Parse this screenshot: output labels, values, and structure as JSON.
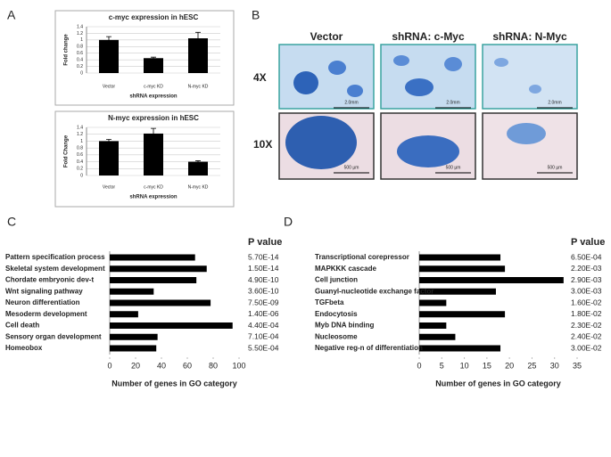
{
  "panel_labels": [
    "A",
    "B",
    "C",
    "D"
  ],
  "image_panel": {
    "columns": [
      "Vector",
      "shRNA: c-Myc",
      "shRNA: N-Myc"
    ],
    "rows": [
      "4X",
      "10X"
    ],
    "scale_bars": [
      [
        "2.0mm",
        "2.0mm",
        "2.0mm"
      ],
      [
        "500 µm",
        "500 µm",
        "500 µm"
      ]
    ]
  },
  "chart_data": [
    {
      "type": "bar",
      "title": "c-myc expression in hESC",
      "y_label": "Fold change",
      "x_label": "shRNA expression",
      "categories": [
        "Vector",
        "c-myc KD",
        "N-myc KD"
      ],
      "values": [
        1.0,
        0.45,
        1.05
      ],
      "errors": [
        0.1,
        0.03,
        0.18
      ],
      "color": "#000000",
      "ylim": [
        0,
        1.4
      ],
      "yticks": [
        0,
        0.2,
        0.4,
        0.6,
        0.8,
        1,
        1.2,
        1.4
      ],
      "grid": true
    },
    {
      "type": "bar",
      "title": "N-myc expression in hESC",
      "y_label": "Fold Change",
      "x_label": "shRNA expression",
      "categories": [
        "Vector",
        "c-myc KD",
        "N-myc KD"
      ],
      "values": [
        1.0,
        1.22,
        0.4
      ],
      "errors": [
        0.05,
        0.15,
        0.03
      ],
      "color": "#000000",
      "ylim": [
        0,
        1.4
      ],
      "yticks": [
        0,
        0.2,
        0.4,
        0.6,
        0.8,
        1,
        1.2,
        1.4
      ],
      "grid": true
    },
    {
      "type": "hbar",
      "x_label": "Number of genes in GO category",
      "p_value_header": "P value",
      "categories": [
        "Pattern specification process",
        "Skeletal system development",
        "Chordate embryonic dev-t",
        "Wnt signaling pathway",
        "Neuron differentiation",
        "Mesoderm development",
        "Cell death",
        "Sensory organ development",
        "Homeobox"
      ],
      "values": [
        66,
        75,
        67,
        34,
        78,
        22,
        95,
        37,
        36
      ],
      "p_values": [
        "5.70E-14",
        "1.50E-14",
        "4.90E-10",
        "3.60E-10",
        "7.50E-09",
        "1.40E-06",
        "4.40E-04",
        "7.10E-04",
        "5.50E-04"
      ],
      "color": "#000000",
      "xlim": [
        0,
        100
      ],
      "xticks": [
        0,
        20,
        40,
        60,
        80,
        100
      ]
    },
    {
      "type": "hbar",
      "x_label": "Number of genes in GO category",
      "p_value_header": "P value",
      "categories": [
        "Transcriptional corepressor",
        "MAPKKK cascade",
        "Cell junction",
        "Guanyl-nucleotide exchange factor",
        "TGFbeta",
        "Endocytosis",
        "Myb DNA binding",
        "Nucleosome",
        "Negative reg-n of differentiation"
      ],
      "values": [
        18,
        19,
        32,
        17,
        6,
        19,
        6,
        8,
        18
      ],
      "p_values": [
        "6.50E-04",
        "2.20E-03",
        "2.90E-03",
        "3.00E-03",
        "1.60E-02",
        "1.80E-02",
        "2.30E-02",
        "2.40E-02",
        "3.00E-02"
      ],
      "color": "#000000",
      "xlim": [
        0,
        35
      ],
      "xticks": [
        0,
        5,
        10,
        15,
        20,
        25,
        30,
        35
      ]
    }
  ]
}
